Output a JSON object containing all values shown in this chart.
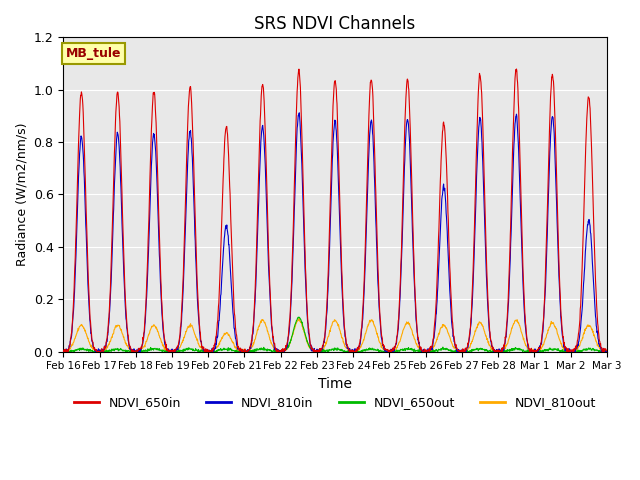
{
  "title": "SRS NDVI Channels",
  "xlabel": "Time",
  "ylabel": "Radiance (W/m2/nm/s)",
  "ylim": [
    0,
    1.2
  ],
  "background_color": "#e8e8e8",
  "annotation_text": "MB_tule",
  "annotation_bg": "#ffffaa",
  "annotation_border": "#999900",
  "series": {
    "NDVI_650in": {
      "color": "#dd0000",
      "zorder": 4
    },
    "NDVI_810in": {
      "color": "#0000cc",
      "zorder": 3
    },
    "NDVI_650out": {
      "color": "#00bb00",
      "zorder": 2
    },
    "NDVI_810out": {
      "color": "#ffaa00",
      "zorder": 1
    }
  },
  "x_tick_labels": [
    "Feb 16",
    "Feb 17",
    "Feb 18",
    "Feb 19",
    "Feb 20",
    "Feb 21",
    "Feb 22",
    "Feb 23",
    "Feb 24",
    "Feb 25",
    "Feb 26",
    "Feb 27",
    "Feb 28",
    "Mar 1",
    "Mar 2",
    "Mar 3"
  ],
  "day_peaks_650in": [
    0.99,
    0.99,
    0.99,
    1.01,
    0.86,
    1.02,
    1.07,
    1.04,
    1.04,
    1.04,
    0.87,
    1.06,
    1.08,
    1.06,
    0.97
  ],
  "day_peaks_810in": [
    0.82,
    0.83,
    0.83,
    0.84,
    0.48,
    0.86,
    0.91,
    0.88,
    0.88,
    0.89,
    0.63,
    0.89,
    0.9,
    0.9,
    0.5
  ],
  "day_peaks_650out": [
    0.01,
    0.01,
    0.01,
    0.01,
    0.01,
    0.01,
    0.13,
    0.01,
    0.01,
    0.01,
    0.01,
    0.01,
    0.01,
    0.01,
    0.01
  ],
  "day_peaks_810out": [
    0.1,
    0.1,
    0.1,
    0.1,
    0.07,
    0.12,
    0.12,
    0.12,
    0.12,
    0.11,
    0.1,
    0.11,
    0.12,
    0.11,
    0.1
  ]
}
